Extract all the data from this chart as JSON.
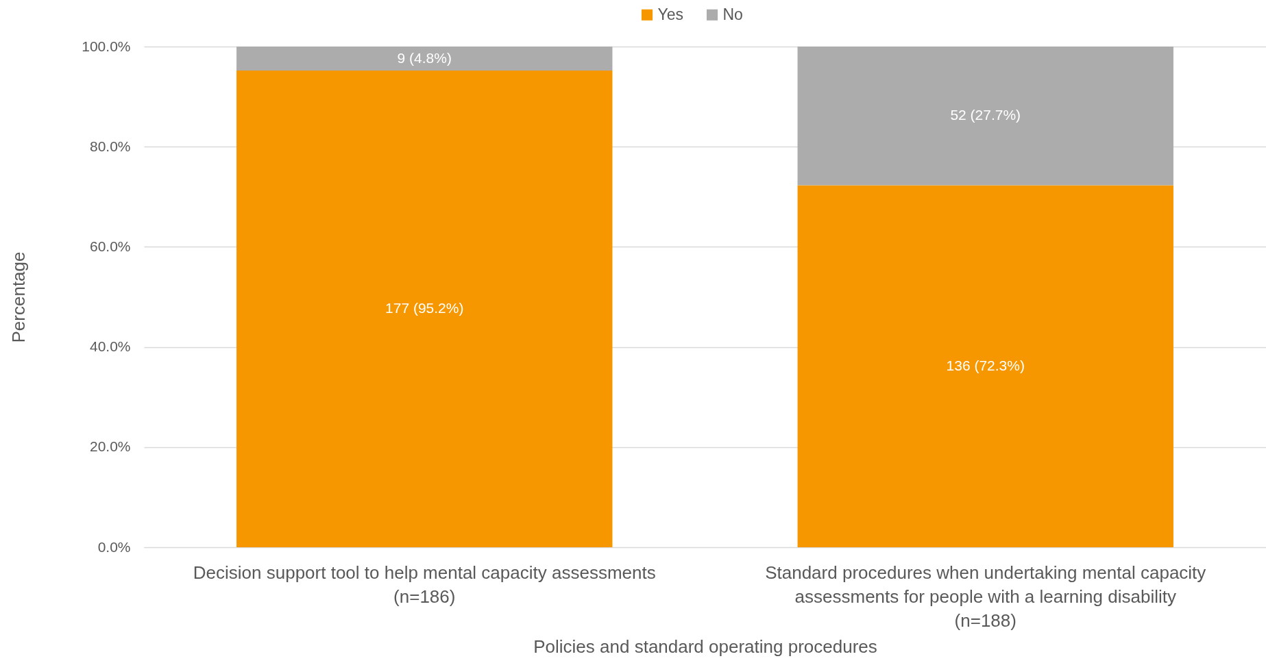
{
  "chart_data": {
    "type": "bar",
    "stacked": true,
    "ylabel": "Percentage",
    "xlabel": "Policies and standard operating procedures",
    "categories": [
      "Decision support tool to help mental capacity assessments\n(n=186)",
      "Standard procedures when undertaking mental capacity\nassessments for people with a learning disability\n(n=188)"
    ],
    "series": [
      {
        "name": "Yes",
        "color": "#f79700",
        "values": [
          95.2,
          72.3
        ],
        "value_labels": [
          "177 (95.2%)",
          "136 (72.3%)"
        ]
      },
      {
        "name": "No",
        "color": "#acacac",
        "values": [
          4.8,
          27.7
        ],
        "value_labels": [
          "9 (4.8%)",
          "52 (27.7%)"
        ]
      }
    ],
    "ylim": [
      0,
      100
    ],
    "yticks": [
      {
        "value": 0,
        "label": "0.0%"
      },
      {
        "value": 20,
        "label": "20.0%"
      },
      {
        "value": 40,
        "label": "40.0%"
      },
      {
        "value": 60,
        "label": "60.0%"
      },
      {
        "value": 80,
        "label": "80.0%"
      },
      {
        "value": 100,
        "label": "100.0%"
      }
    ],
    "grid": "y",
    "legend": "top"
  }
}
